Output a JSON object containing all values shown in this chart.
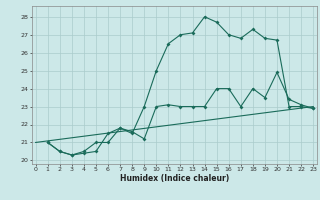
{
  "bg_color": "#cce8e8",
  "grid_color": "#aacccc",
  "line_color": "#1a6b5a",
  "line1_x": [
    1,
    2,
    3,
    4,
    5,
    6,
    7,
    8,
    9,
    10,
    11,
    12,
    13,
    14,
    15,
    16,
    17,
    18,
    19,
    20,
    21,
    22,
    23
  ],
  "line1_y": [
    21.0,
    20.5,
    20.3,
    20.4,
    20.5,
    21.5,
    21.8,
    21.6,
    21.2,
    23.0,
    23.1,
    23.0,
    23.0,
    23.0,
    24.0,
    24.0,
    23.0,
    24.0,
    23.5,
    24.9,
    23.4,
    23.1,
    22.9
  ],
  "line2_x": [
    1,
    2,
    3,
    4,
    5,
    6,
    7,
    8,
    9,
    10,
    11,
    12,
    13,
    14,
    15,
    16,
    17,
    18,
    19,
    20,
    21,
    22,
    23
  ],
  "line2_y": [
    21.0,
    20.5,
    20.3,
    20.5,
    21.0,
    21.0,
    21.8,
    21.5,
    23.0,
    25.0,
    26.5,
    27.0,
    27.1,
    28.0,
    27.7,
    27.0,
    26.8,
    27.3,
    26.8,
    26.7,
    23.0,
    23.0,
    22.9
  ],
  "line3_x": [
    0,
    23
  ],
  "line3_y": [
    21.0,
    23.0
  ],
  "xlim": [
    -0.3,
    23.3
  ],
  "ylim": [
    19.8,
    28.6
  ],
  "yticks": [
    20,
    21,
    22,
    23,
    24,
    25,
    26,
    27,
    28
  ],
  "xticks": [
    0,
    1,
    2,
    3,
    4,
    5,
    6,
    7,
    8,
    9,
    10,
    11,
    12,
    13,
    14,
    15,
    16,
    17,
    18,
    19,
    20,
    21,
    22,
    23
  ],
  "xlabel": "Humidex (Indice chaleur)"
}
